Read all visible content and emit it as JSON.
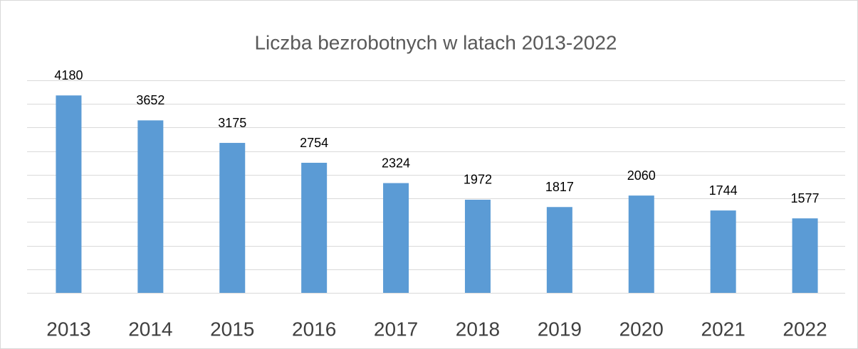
{
  "chart_data": {
    "type": "bar",
    "title": "Liczba bezrobotnych w latach 2013-2022",
    "categories": [
      "2013",
      "2014",
      "2015",
      "2016",
      "2017",
      "2018",
      "2019",
      "2020",
      "2021",
      "2022"
    ],
    "values": [
      4180,
      3652,
      3175,
      2754,
      2324,
      1972,
      1817,
      2060,
      1744,
      1577
    ],
    "color": "#5b9bd5",
    "ylim": [
      0,
      4500
    ],
    "yticks": [
      0,
      500,
      1000,
      1500,
      2000,
      2500,
      3000,
      3500,
      4000,
      4500
    ],
    "grid": true
  }
}
